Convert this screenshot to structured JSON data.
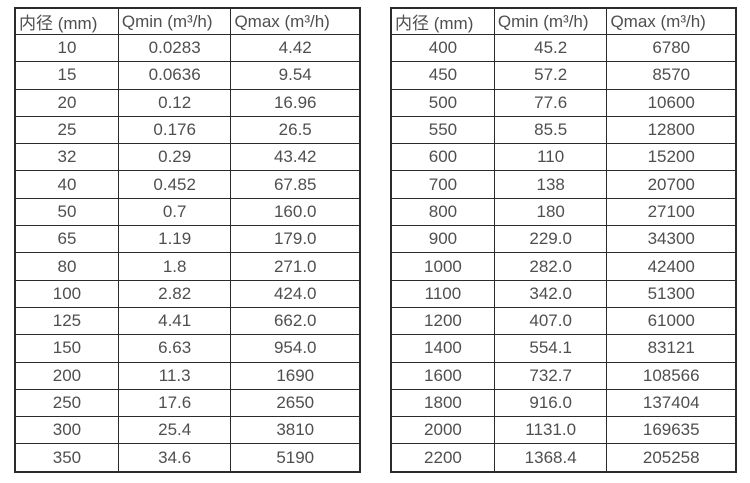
{
  "page": {
    "background": "#ffffff",
    "border_color": "#2b2b2b",
    "text_color": "#4f4f4f"
  },
  "left_table": {
    "headers": [
      "内径 (mm)",
      "Qmin (m³/h)",
      "Qmax (m³/h)"
    ],
    "rows": [
      [
        "10",
        "0.0283",
        "4.42"
      ],
      [
        "15",
        "0.0636",
        "9.54"
      ],
      [
        "20",
        "0.12",
        "16.96"
      ],
      [
        "25",
        "0.176",
        "26.5"
      ],
      [
        "32",
        "0.29",
        "43.42"
      ],
      [
        "40",
        "0.452",
        "67.85"
      ],
      [
        "50",
        "0.7",
        "160.0"
      ],
      [
        "65",
        "1.19",
        "179.0"
      ],
      [
        "80",
        "1.8",
        "271.0"
      ],
      [
        "100",
        "2.82",
        "424.0"
      ],
      [
        "125",
        "4.41",
        "662.0"
      ],
      [
        "150",
        "6.63",
        "954.0"
      ],
      [
        "200",
        "11.3",
        "1690"
      ],
      [
        "250",
        "17.6",
        "2650"
      ],
      [
        "300",
        "25.4",
        "3810"
      ],
      [
        "350",
        "34.6",
        "5190"
      ]
    ]
  },
  "right_table": {
    "headers": [
      "内径 (mm)",
      "Qmin (m³/h)",
      "Qmax (m³/h)"
    ],
    "rows": [
      [
        "400",
        "45.2",
        "6780"
      ],
      [
        "450",
        "57.2",
        "8570"
      ],
      [
        "500",
        "77.6",
        "10600"
      ],
      [
        "550",
        "85.5",
        "12800"
      ],
      [
        "600",
        "110",
        "15200"
      ],
      [
        "700",
        "138",
        "20700"
      ],
      [
        "800",
        "180",
        "27100"
      ],
      [
        "900",
        "229.0",
        "34300"
      ],
      [
        "1000",
        "282.0",
        "42400"
      ],
      [
        "1100",
        "342.0",
        "51300"
      ],
      [
        "1200",
        "407.0",
        "61000"
      ],
      [
        "1400",
        "554.1",
        "83121"
      ],
      [
        "1600",
        "732.7",
        "108566"
      ],
      [
        "1800",
        "916.0",
        "137404"
      ],
      [
        "2000",
        "1131.0",
        "169635"
      ],
      [
        "2200",
        "1368.4",
        "205258"
      ]
    ]
  }
}
